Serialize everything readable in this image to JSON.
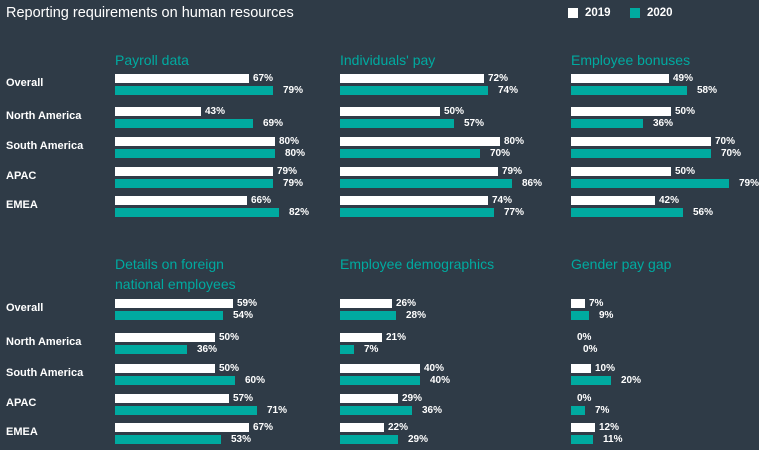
{
  "chart_data": {
    "type": "bar",
    "title": "Reporting requirements on human resources",
    "legend": {
      "position": "top-right",
      "entries": [
        {
          "name": "2019",
          "color": "#ffffff"
        },
        {
          "name": "2020",
          "color": "#00aaa0"
        }
      ]
    },
    "categories": [
      "Overall",
      "North America",
      "South America",
      "APAC",
      "EMEA"
    ],
    "unit": "%",
    "panels": [
      {
        "title": "Payroll data",
        "series": [
          {
            "name": "2019",
            "values": [
              67,
              43,
              80,
              79,
              66
            ]
          },
          {
            "name": "2020",
            "values": [
              79,
              69,
              80,
              79,
              82
            ]
          }
        ]
      },
      {
        "title": "Individuals' pay",
        "series": [
          {
            "name": "2019",
            "values": [
              72,
              50,
              80,
              79,
              74
            ]
          },
          {
            "name": "2020",
            "values": [
              74,
              57,
              70,
              86,
              77
            ]
          }
        ]
      },
      {
        "title": "Employee bonuses",
        "series": [
          {
            "name": "2019",
            "values": [
              49,
              50,
              70,
              50,
              42
            ]
          },
          {
            "name": "2020",
            "values": [
              58,
              36,
              70,
              79,
              56
            ]
          }
        ]
      },
      {
        "title": "Details on foreign national employees",
        "series": [
          {
            "name": "2019",
            "values": [
              59,
              50,
              50,
              57,
              67
            ]
          },
          {
            "name": "2020",
            "values": [
              54,
              36,
              60,
              71,
              53
            ]
          }
        ]
      },
      {
        "title": "Employee demographics",
        "series": [
          {
            "name": "2019",
            "values": [
              26,
              21,
              40,
              29,
              22
            ]
          },
          {
            "name": "2020",
            "values": [
              28,
              7,
              40,
              36,
              29
            ]
          }
        ]
      },
      {
        "title": "Gender pay gap",
        "series": [
          {
            "name": "2019",
            "values": [
              7,
              0,
              10,
              0,
              12
            ]
          },
          {
            "name": "2020",
            "values": [
              9,
              0,
              20,
              7,
              11
            ]
          }
        ]
      }
    ]
  }
}
